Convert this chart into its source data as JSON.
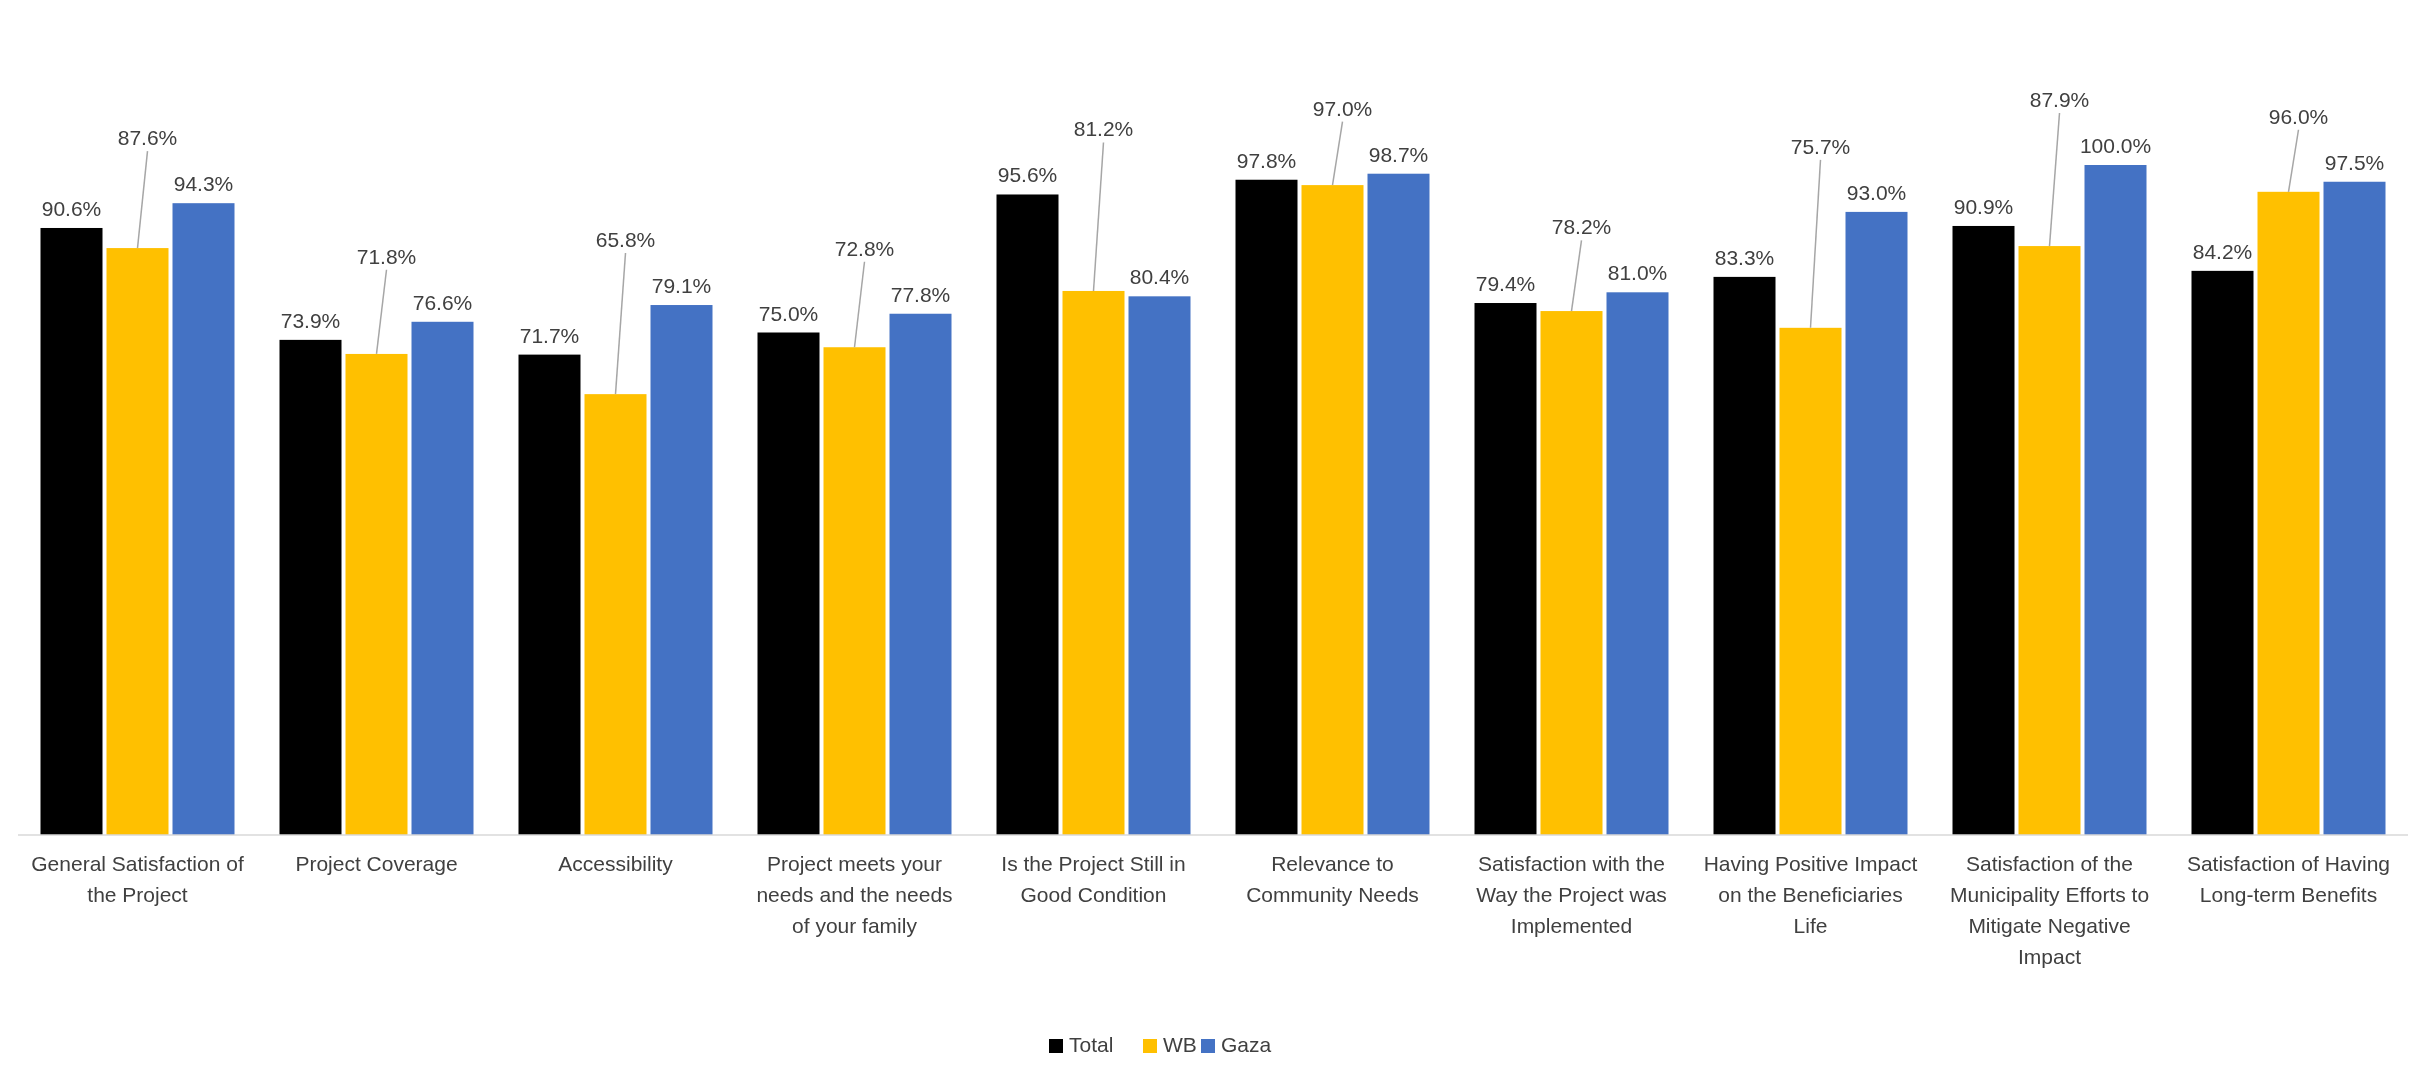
{
  "chart_data": {
    "type": "bar",
    "categories": [
      "General Satisfaction of the Project",
      "Project Coverage",
      "Accessibility",
      "Project meets your needs and the needs of your family",
      "Is the Project Still in Good Condition",
      "Relevance to Community Needs",
      "Satisfaction with the Way the Project was Implemented",
      "Having Positive Impact on the Beneficiaries Life",
      "Satisfaction of the Municipality Efforts to Mitigate Negative Impact",
      "Satisfaction of Having Long-term Benefits"
    ],
    "series": [
      {
        "name": "Total",
        "color": "#000000",
        "values": [
          90.6,
          73.9,
          71.7,
          75.0,
          95.6,
          97.8,
          79.4,
          83.3,
          90.9,
          84.2
        ],
        "value_labels": [
          "90.6%",
          "73.9%",
          "71.7%",
          "75.0%",
          "95.6%",
          "97.8%",
          "79.4%",
          "83.3%",
          "90.9%",
          "84.2%"
        ]
      },
      {
        "name": "WB",
        "color": "#ffc000",
        "values": [
          87.6,
          71.8,
          65.8,
          72.8,
          81.2,
          97.0,
          78.2,
          75.7,
          87.9,
          96.0
        ],
        "value_labels": [
          "87.6%",
          "71.8%",
          "65.8%",
          "72.8%",
          "81.2%",
          "97.0%",
          "78.2%",
          "75.7%",
          "87.9%",
          "96.0%"
        ]
      },
      {
        "name": "Gaza",
        "color": "#4472c4",
        "values": [
          94.3,
          76.6,
          79.1,
          77.8,
          80.4,
          98.7,
          81.0,
          93.0,
          100.0,
          97.5
        ],
        "value_labels": [
          "94.3%",
          "76.6%",
          "79.1%",
          "77.8%",
          "80.4%",
          "98.7%",
          "81.0%",
          "93.0%",
          "100.0%",
          "97.5%"
        ]
      }
    ],
    "ylim": [
      0,
      100
    ],
    "tick_labels": "x",
    "legend": "bottom"
  }
}
